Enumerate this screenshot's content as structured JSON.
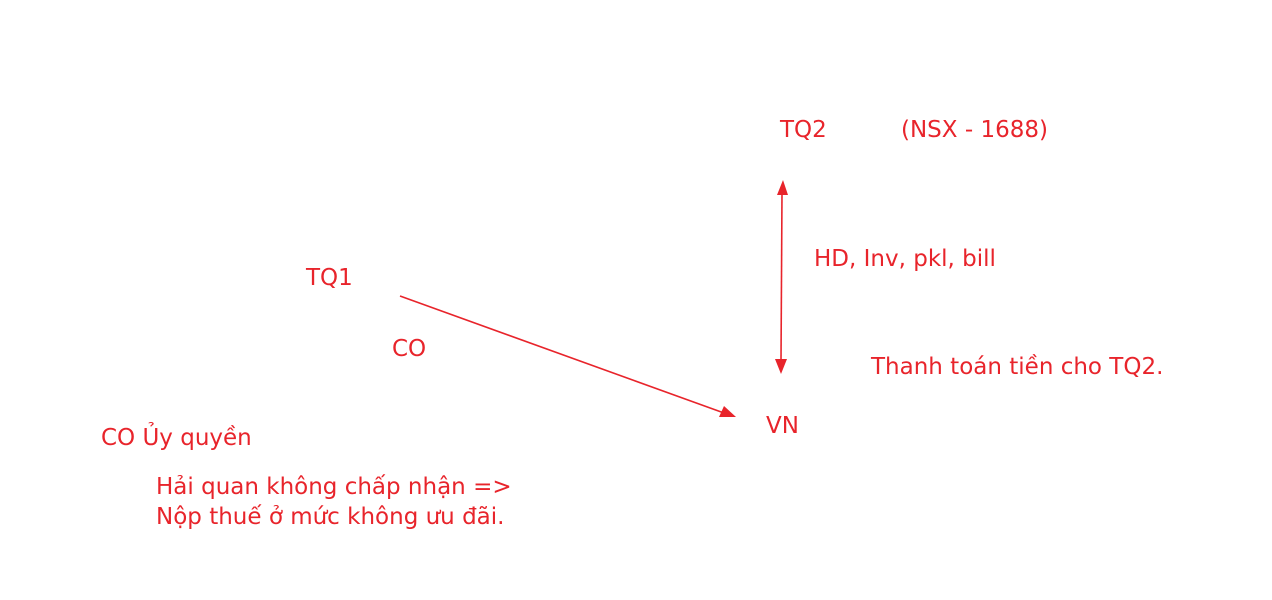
{
  "diagram": {
    "accent_color": "#e8242b",
    "nodes": {
      "tq2": "TQ2",
      "tq1": "TQ1",
      "vn": "VN"
    },
    "labels": {
      "nsx": "(NSX - 1688)",
      "documents": "HD, Inv, pkl, bill",
      "co": "CO",
      "payment": "Thanh toán tiền cho TQ2.",
      "co_authorized": "CO Ủy quyền",
      "customs_line1": "Hải quan không chấp nhận =>",
      "customs_line2": "Nộp thuế ở mức không ưu đãi."
    },
    "edges": [
      {
        "from": "TQ1",
        "to": "VN",
        "direction": "forward"
      },
      {
        "from": "VN",
        "to": "TQ2",
        "direction": "both"
      }
    ]
  }
}
